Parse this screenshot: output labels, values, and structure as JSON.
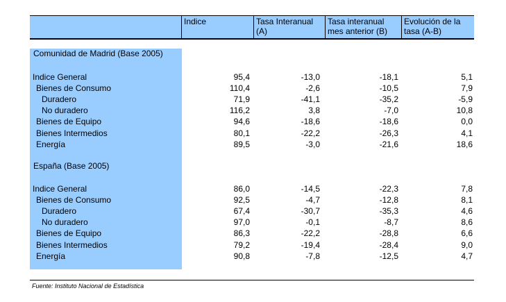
{
  "headers": [
    "Indice",
    "Tasa Interanual (A)",
    "Tasa interanual mes anterior (B)",
    "Evolución de la tasa (A-B)"
  ],
  "sections": [
    {
      "title": "Comunidad de Madrid (Base 2005)",
      "rows": [
        {
          "label": "Indice General",
          "indent": 0,
          "values": [
            "95,4",
            "-13,0",
            "-18,1",
            "5,1"
          ]
        },
        {
          "label": "Bienes de Consumo",
          "indent": 1,
          "values": [
            "110,4",
            "-2,6",
            "-10,5",
            "7,9"
          ]
        },
        {
          "label": "Duradero",
          "indent": 2,
          "values": [
            "71,9",
            "-41,1",
            "-35,2",
            "-5,9"
          ]
        },
        {
          "label": "No duradero",
          "indent": 2,
          "values": [
            "116,2",
            "3,8",
            "-7,0",
            "10,8"
          ]
        },
        {
          "label": "Bienes de Equipo",
          "indent": 1,
          "values": [
            "94,6",
            "-18,6",
            "-18,6",
            "0,0"
          ]
        },
        {
          "label": "Bienes Intermedios",
          "indent": 1,
          "values": [
            "80,1",
            "-22,2",
            "-26,3",
            "4,1"
          ]
        },
        {
          "label": "Energía",
          "indent": 1,
          "values": [
            "89,5",
            "-3,0",
            "-21,6",
            "18,6"
          ]
        }
      ]
    },
    {
      "title": "España (Base 2005)",
      "rows": [
        {
          "label": "Indice General",
          "indent": 0,
          "values": [
            "86,0",
            "-14,5",
            "-22,3",
            "7,8"
          ]
        },
        {
          "label": "Bienes de Consumo",
          "indent": 1,
          "values": [
            "92,5",
            "-4,7",
            "-12,8",
            "8,1"
          ]
        },
        {
          "label": "Duradero",
          "indent": 2,
          "values": [
            "67,4",
            "-30,7",
            "-35,3",
            "4,6"
          ]
        },
        {
          "label": "No duradero",
          "indent": 2,
          "values": [
            "97,0",
            "-0,1",
            "-8,7",
            "8,6"
          ]
        },
        {
          "label": "Bienes de Equipo",
          "indent": 1,
          "values": [
            "86,3",
            "-22,2",
            "-28,8",
            "6,6"
          ]
        },
        {
          "label": "Bienes Intermedios",
          "indent": 1,
          "values": [
            "79,2",
            "-19,4",
            "-28,4",
            "9,0"
          ]
        },
        {
          "label": "Energía",
          "indent": 1,
          "values": [
            "90,8",
            "-7,8",
            "-12,5",
            "4,7"
          ]
        }
      ]
    }
  ],
  "footer": "Fuente: Instituto Nacional de Estadística"
}
